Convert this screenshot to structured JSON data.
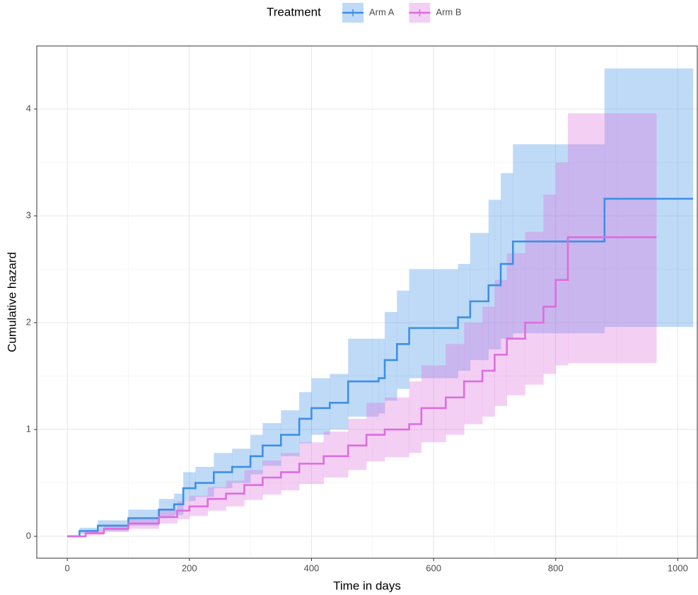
{
  "chart_data": {
    "type": "step",
    "x_label": "Time in days",
    "y_label": "Cumulative hazard",
    "legend_title": "Treatment",
    "legend_position": "top",
    "grid": true,
    "xlim": [
      -50,
      1032
    ],
    "ylim": [
      -0.205,
      4.59
    ],
    "xticks": [
      0,
      200,
      400,
      600,
      800,
      1000
    ],
    "yticks": [
      0,
      1,
      2,
      3,
      4
    ],
    "series": [
      {
        "name": "Arm A",
        "color": "#3d8fe8",
        "x": [
          0,
          20,
          50,
          100,
          150,
          175,
          190,
          210,
          240,
          270,
          300,
          320,
          350,
          380,
          400,
          430,
          460,
          510,
          520,
          540,
          560,
          640,
          660,
          690,
          710,
          730,
          880,
          1025
        ],
        "values": [
          0,
          0.05,
          0.1,
          0.17,
          0.25,
          0.3,
          0.45,
          0.5,
          0.6,
          0.65,
          0.75,
          0.85,
          0.95,
          1.1,
          1.2,
          1.25,
          1.45,
          1.48,
          1.65,
          1.8,
          1.95,
          2.05,
          2.2,
          2.35,
          2.55,
          2.76,
          3.16,
          3.16
        ],
        "lower": [
          0,
          0.02,
          0.05,
          0.1,
          0.17,
          0.2,
          0.33,
          0.37,
          0.45,
          0.5,
          0.58,
          0.66,
          0.75,
          0.87,
          0.95,
          1.0,
          1.12,
          1.15,
          1.27,
          1.38,
          1.48,
          1.55,
          1.65,
          1.75,
          1.85,
          1.9,
          1.96,
          1.96
        ],
        "upper": [
          0,
          0.08,
          0.15,
          0.25,
          0.35,
          0.4,
          0.6,
          0.65,
          0.78,
          0.82,
          0.95,
          1.06,
          1.18,
          1.35,
          1.48,
          1.52,
          1.85,
          1.85,
          2.1,
          2.3,
          2.5,
          2.55,
          2.84,
          3.15,
          3.4,
          3.67,
          4.38,
          4.38
        ]
      },
      {
        "name": "Arm B",
        "color": "#dd6ddd",
        "x": [
          0,
          30,
          60,
          100,
          150,
          180,
          200,
          230,
          260,
          290,
          320,
          350,
          380,
          420,
          460,
          490,
          520,
          560,
          580,
          620,
          650,
          680,
          700,
          720,
          750,
          780,
          800,
          820,
          965
        ],
        "values": [
          0,
          0.03,
          0.07,
          0.12,
          0.18,
          0.24,
          0.28,
          0.35,
          0.4,
          0.48,
          0.55,
          0.6,
          0.68,
          0.75,
          0.85,
          0.95,
          1.0,
          1.05,
          1.2,
          1.3,
          1.45,
          1.55,
          1.7,
          1.85,
          2.0,
          2.15,
          2.4,
          2.8,
          2.8
        ],
        "lower": [
          0,
          0.01,
          0.04,
          0.07,
          0.12,
          0.16,
          0.19,
          0.24,
          0.28,
          0.34,
          0.39,
          0.43,
          0.49,
          0.55,
          0.62,
          0.7,
          0.74,
          0.78,
          0.88,
          0.95,
          1.05,
          1.12,
          1.22,
          1.32,
          1.42,
          1.52,
          1.6,
          1.62,
          1.62
        ],
        "upper": [
          0,
          0.06,
          0.1,
          0.17,
          0.25,
          0.33,
          0.38,
          0.46,
          0.52,
          0.62,
          0.71,
          0.78,
          0.88,
          0.98,
          1.1,
          1.25,
          1.3,
          1.45,
          1.6,
          1.8,
          2.0,
          2.15,
          2.4,
          2.65,
          2.85,
          3.2,
          3.5,
          3.96,
          3.96
        ]
      }
    ]
  }
}
